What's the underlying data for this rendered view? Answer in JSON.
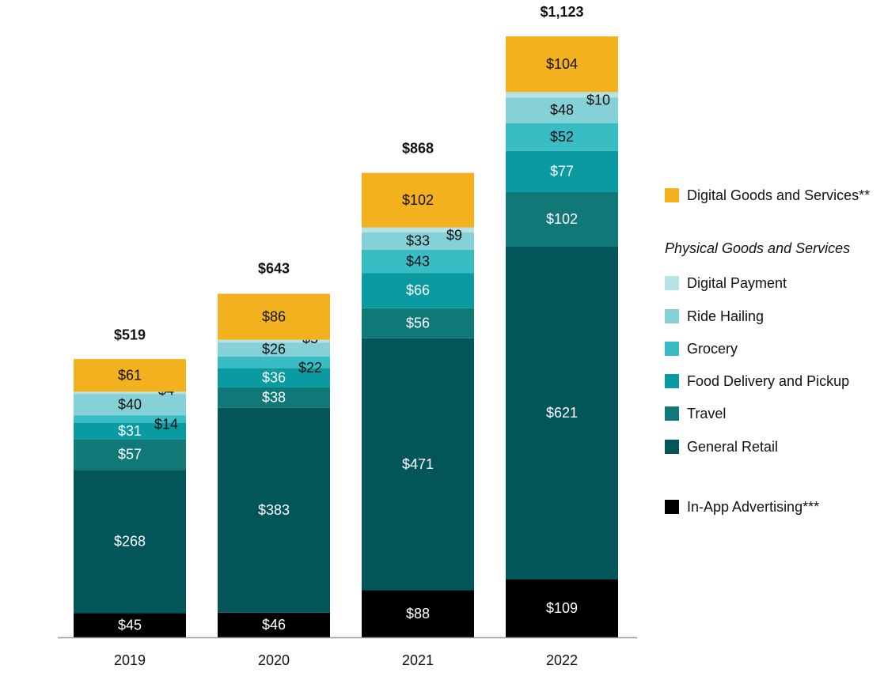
{
  "chart_data": {
    "type": "stacked_bar",
    "categories": [
      "2019",
      "2020",
      "2021",
      "2022"
    ],
    "series": [
      {
        "name": "In-App Advertising***",
        "color": "#000000",
        "values": [
          45,
          46,
          88,
          109
        ],
        "value_labels": [
          "$45",
          "$46",
          "$88",
          "$109"
        ]
      },
      {
        "name": "General Retail",
        "color": "#02565a",
        "values": [
          268,
          383,
          471,
          621
        ],
        "value_labels": [
          "$268",
          "$383",
          "$471",
          "$621"
        ]
      },
      {
        "name": "Travel",
        "color": "#117878",
        "values": [
          57,
          38,
          56,
          102
        ],
        "value_labels": [
          "$57",
          "$38",
          "$56",
          "$102"
        ]
      },
      {
        "name": "Food Delivery and Pickup",
        "color": "#0a9aa1",
        "values": [
          31,
          36,
          66,
          77
        ],
        "value_labels": [
          "$31",
          "$36",
          "$66",
          "$77"
        ]
      },
      {
        "name": "Grocery",
        "color": "#38bdc4",
        "values": [
          14,
          22,
          43,
          52
        ],
        "value_labels": [
          "$14",
          "$22",
          "$43",
          "$52"
        ]
      },
      {
        "name": "Ride Hailing",
        "color": "#86d1d7",
        "values": [
          40,
          26,
          33,
          48
        ],
        "value_labels": [
          "$40",
          "$26",
          "$33",
          "$48"
        ]
      },
      {
        "name": "Digital Payment",
        "color": "#b5e3e6",
        "values": [
          4,
          5,
          9,
          10
        ],
        "value_labels": [
          "$4",
          "$5",
          "$9",
          "$10"
        ]
      },
      {
        "name": "Digital Goods and Services**",
        "color": "#f2b11d",
        "values": [
          61,
          86,
          102,
          104
        ],
        "value_labels": [
          "$61",
          "$86",
          "$102",
          "$104"
        ]
      }
    ],
    "totals": [
      519,
      643,
      868,
      1123
    ],
    "total_labels": [
      "$519",
      "$643",
      "$868",
      "$1,123"
    ],
    "legend_group_title": "Physical Goods and Services"
  }
}
